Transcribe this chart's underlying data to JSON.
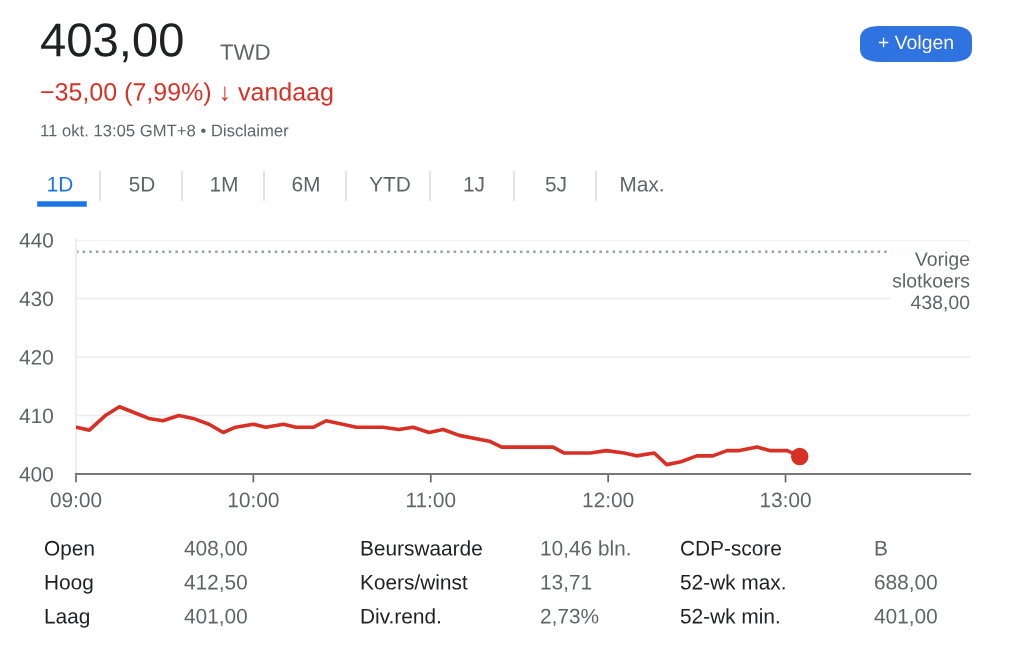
{
  "chart_data": {
    "type": "line",
    "title": "403,00",
    "subtitle": "−35,00 (7,99%) ↓ vandaag",
    "annotations": [
      "TWD",
      "11 okt. 13:05 GMT+8 • Disclaimer",
      "+ Volgen",
      "1D",
      "5D",
      "1M",
      "6M",
      "YTD",
      "1J",
      "5J",
      "Max.",
      "Open",
      "408,00",
      "Beurswaarde",
      "10,46 bln.",
      "CDP-score",
      "B",
      "Hoog",
      "412,50",
      "Koers/winst",
      "13,71",
      "52-wk max.",
      "688,00",
      "Laag",
      "401,00",
      "Div.rend.",
      "2,73%",
      "52-wk min.",
      "401,00"
    ],
    "series": [
      {
        "color": "#d93025",
        "marker": "none",
        "line_style": "solid",
        "x": [
          9.0,
          9.075,
          9.17,
          9.245,
          9.32,
          9.41,
          9.49,
          9.58,
          9.66,
          9.75,
          9.83,
          9.9,
          10.0,
          10.07,
          10.17,
          10.24,
          10.34,
          10.41,
          10.49,
          10.58,
          10.73,
          10.82,
          10.9,
          10.99,
          11.07,
          11.16,
          11.33,
          11.4,
          11.5,
          11.69,
          11.75,
          11.9,
          11.99,
          12.09,
          12.16,
          12.26,
          12.33,
          12.41,
          12.5,
          12.59,
          12.67,
          12.74,
          12.84,
          12.91,
          13.01,
          13.08
        ],
        "values": [
          408.0,
          407.5,
          410.1,
          411.5,
          410.6,
          409.5,
          409.1,
          410.0,
          409.5,
          408.5,
          407.1,
          408.0,
          408.5,
          408.0,
          408.5,
          408.0,
          408.0,
          409.1,
          408.6,
          408.0,
          408.0,
          407.6,
          408.0,
          407.1,
          407.6,
          406.6,
          405.6,
          404.6,
          404.6,
          404.6,
          403.6,
          403.6,
          404.0,
          403.6,
          403.1,
          403.6,
          401.6,
          402.1,
          403.1,
          403.1,
          404.0,
          404.0,
          404.6,
          404.0,
          404.0,
          403.0
        ]
      },
      {
        "type": "scatter",
        "color": "#d93025",
        "marker": "circle",
        "x": [
          13.08
        ],
        "values": [
          403.0
        ]
      }
    ],
    "xlim": [
      9,
      14.04
    ],
    "xticks": [
      {
        "value": 9,
        "label": "09:00"
      },
      {
        "value": 10,
        "label": "10:00"
      },
      {
        "value": 11,
        "label": "11:00"
      },
      {
        "value": 12,
        "label": "12:00"
      },
      {
        "value": 13,
        "label": "13:00"
      }
    ],
    "ylim": [
      400,
      440
    ],
    "yticks": [
      400,
      410,
      420,
      430,
      440
    ],
    "ref_lines": [
      {
        "axis": "y",
        "value": 438,
        "label": "Vorige\nslotkoers\n438,00",
        "color": "#9aa0a6",
        "line_style": "dotted"
      }
    ],
    "grid": "y",
    "legend": false
  }
}
